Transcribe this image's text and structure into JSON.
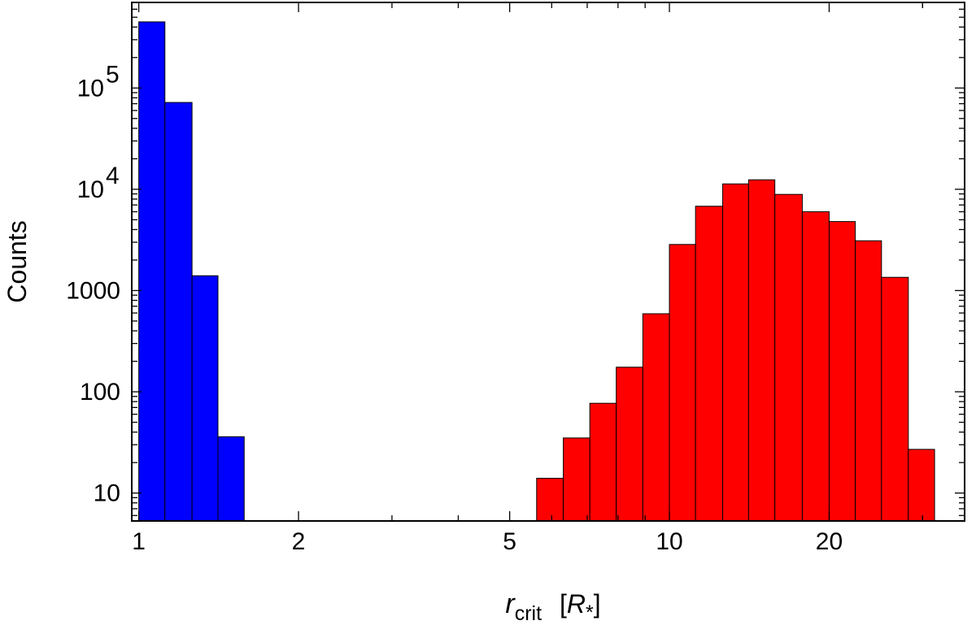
{
  "chart_data": {
    "type": "bar",
    "title": "",
    "xlabel": {
      "symbol": "r",
      "subscript": "crit",
      "unit_open": "[",
      "unit_symbol": "R",
      "unit_sub": "*",
      "unit_close": "]"
    },
    "ylabel": "Counts",
    "x_scale": "log",
    "y_scale": "log",
    "xlim": [
      0.97,
      36
    ],
    "ylim": [
      5.3,
      700000
    ],
    "grid": false,
    "legend": "none",
    "x_ticks": [
      {
        "value": 1,
        "label": "1"
      },
      {
        "value": 2,
        "label": "2"
      },
      {
        "value": 5,
        "label": "5"
      },
      {
        "value": 10,
        "label": "10"
      },
      {
        "value": 20,
        "label": "20"
      }
    ],
    "y_ticks": [
      {
        "value": 10,
        "label": "10",
        "exp": ""
      },
      {
        "value": 100,
        "label": "100",
        "exp": ""
      },
      {
        "value": 1000,
        "label": "1000",
        "exp": ""
      },
      {
        "value": 10000,
        "label": "10",
        "exp": "4"
      },
      {
        "value": 100000,
        "label": "10",
        "exp": "5"
      }
    ],
    "series": [
      {
        "color": "#0000ff",
        "bins": [
          {
            "x0": 1.0,
            "x1": 1.12,
            "count": 450000
          },
          {
            "x0": 1.12,
            "x1": 1.26,
            "count": 72000
          },
          {
            "x0": 1.26,
            "x1": 1.41,
            "count": 1400
          },
          {
            "x0": 1.41,
            "x1": 1.58,
            "count": 36
          }
        ]
      },
      {
        "color": "#ff0000",
        "bins": [
          {
            "x0": 5.62,
            "x1": 6.31,
            "count": 14
          },
          {
            "x0": 6.31,
            "x1": 7.08,
            "count": 35
          },
          {
            "x0": 7.08,
            "x1": 7.94,
            "count": 77
          },
          {
            "x0": 7.94,
            "x1": 8.91,
            "count": 175
          },
          {
            "x0": 8.91,
            "x1": 10.0,
            "count": 590
          },
          {
            "x0": 10.0,
            "x1": 11.2,
            "count": 2850
          },
          {
            "x0": 11.2,
            "x1": 12.6,
            "count": 6800
          },
          {
            "x0": 12.6,
            "x1": 14.1,
            "count": 11300
          },
          {
            "x0": 14.1,
            "x1": 15.8,
            "count": 12400
          },
          {
            "x0": 15.8,
            "x1": 17.8,
            "count": 8900
          },
          {
            "x0": 17.8,
            "x1": 20.0,
            "count": 6000
          },
          {
            "x0": 20.0,
            "x1": 22.4,
            "count": 4800
          },
          {
            "x0": 22.4,
            "x1": 25.1,
            "count": 3100
          },
          {
            "x0": 25.1,
            "x1": 28.2,
            "count": 1350
          },
          {
            "x0": 28.2,
            "x1": 31.6,
            "count": 27
          }
        ]
      }
    ]
  }
}
